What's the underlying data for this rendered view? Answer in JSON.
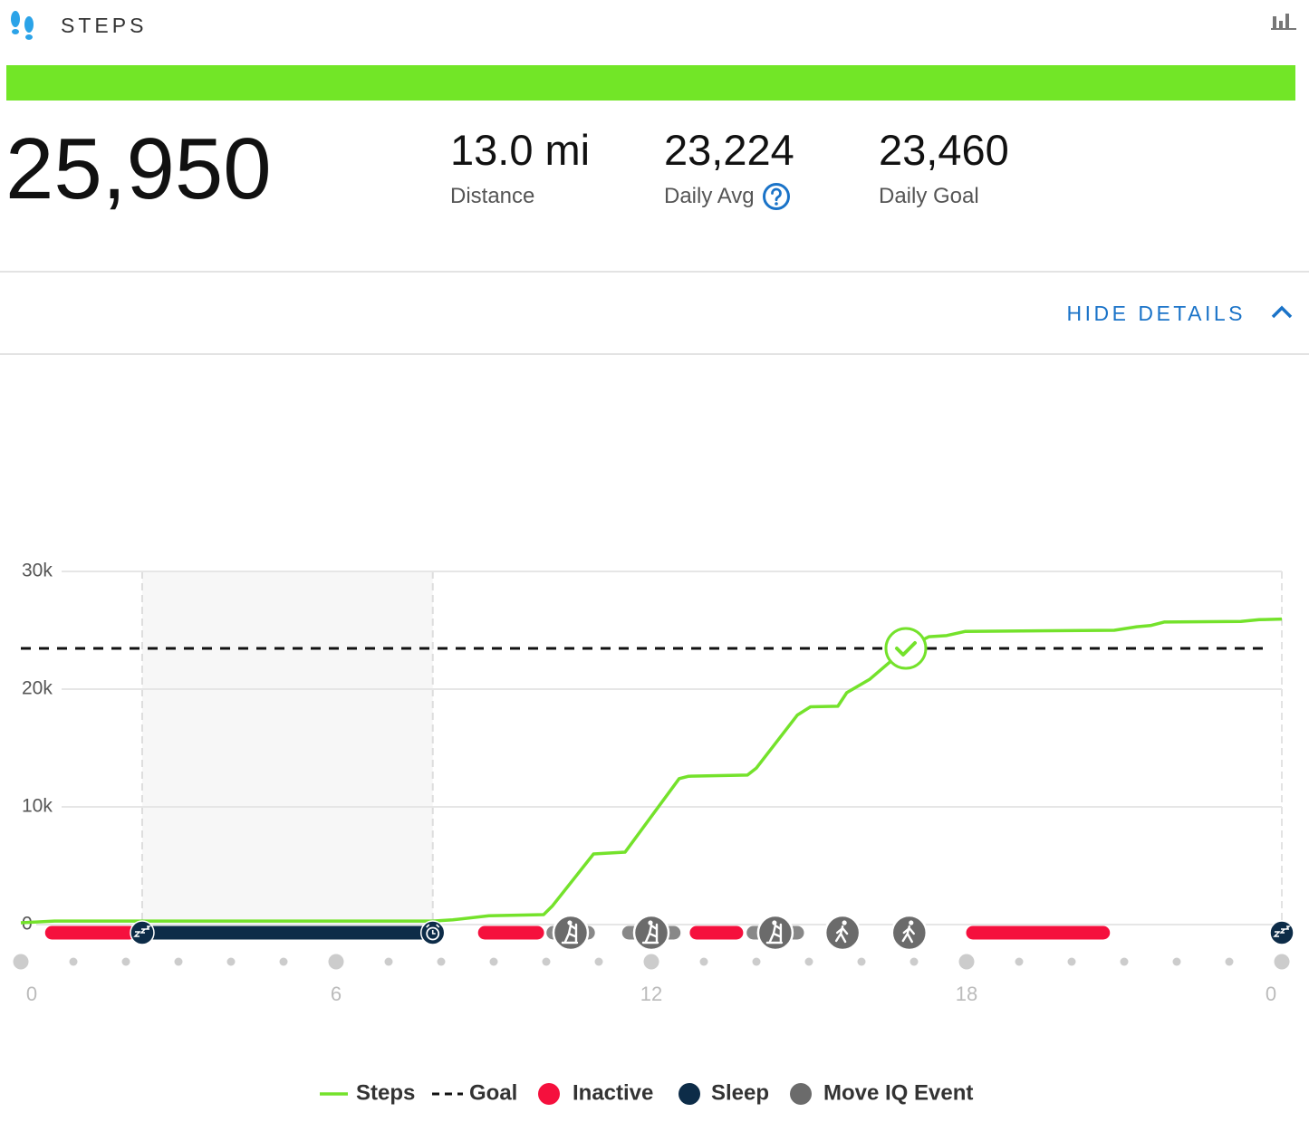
{
  "header": {
    "title": "STEPS"
  },
  "summary": {
    "total": "25,950",
    "stats": [
      {
        "value": "13.0 mi",
        "label": "Distance"
      },
      {
        "value": "23,224",
        "label": "Daily Avg"
      },
      {
        "value": "23,460",
        "label": "Daily Goal"
      }
    ]
  },
  "details_toggle": "HIDE DETAILS",
  "chart_data": {
    "type": "line",
    "xlim": [
      0,
      24
    ],
    "ylim": [
      0,
      30000
    ],
    "yticks": [
      0,
      {
        "value": 10000,
        "label": "10k"
      },
      {
        "value": 20000,
        "label": "20k"
      },
      {
        "value": 30000,
        "label": "30k"
      }
    ],
    "xticks": [
      0,
      6,
      12,
      18,
      {
        "value": 24,
        "label": "0"
      }
    ],
    "xminorticks": [
      1,
      2,
      3,
      4,
      5,
      7,
      8,
      9,
      10,
      11,
      13,
      14,
      15,
      16,
      17,
      19,
      20,
      21,
      22,
      23
    ],
    "grid": true,
    "series": [
      {
        "name": "Steps",
        "color": "#74e22b",
        "x": [
          0,
          0.64,
          7.84,
          8.22,
          8.91,
          9.95,
          10.12,
          10.9,
          11.5,
          12.53,
          12.71,
          13.83,
          14.0,
          14.78,
          15.03,
          15.55,
          15.72,
          16.16,
          16.84,
          17.28,
          17.62,
          17.97,
          20.81,
          21.24,
          21.5,
          21.76,
          23.22,
          23.57,
          24
        ],
        "values": [
          150,
          300,
          300,
          400,
          750,
          850,
          1600,
          6000,
          6150,
          12400,
          12600,
          12700,
          13300,
          17800,
          18500,
          18550,
          19700,
          20850,
          23450,
          24450,
          24550,
          24900,
          25000,
          25300,
          25400,
          25700,
          25750,
          25900,
          25950
        ]
      }
    ],
    "goal": {
      "name": "Goal",
      "value": 23460,
      "color": "#111111"
    },
    "inactive": {
      "name": "Inactive",
      "color": "#f5103d",
      "periods": [
        [
          0.47,
          2.19
        ],
        [
          8.71,
          9.95
        ],
        [
          12.74,
          13.74
        ],
        [
          18.0,
          20.72
        ]
      ]
    },
    "sleep": {
      "name": "Sleep",
      "color": "#0d2c48",
      "periods": [
        [
          2.31,
          7.84
        ],
        [
          24,
          24
        ]
      ]
    },
    "move_iq": {
      "name": "Move IQ Event",
      "color": "#6b6b6b",
      "events": [
        [
          10.03,
          10.9
        ],
        [
          11.47,
          12.53
        ],
        [
          13.84,
          14.88
        ],
        [
          15.64,
          15.64
        ],
        [
          16.91,
          16.91
        ]
      ]
    }
  }
}
